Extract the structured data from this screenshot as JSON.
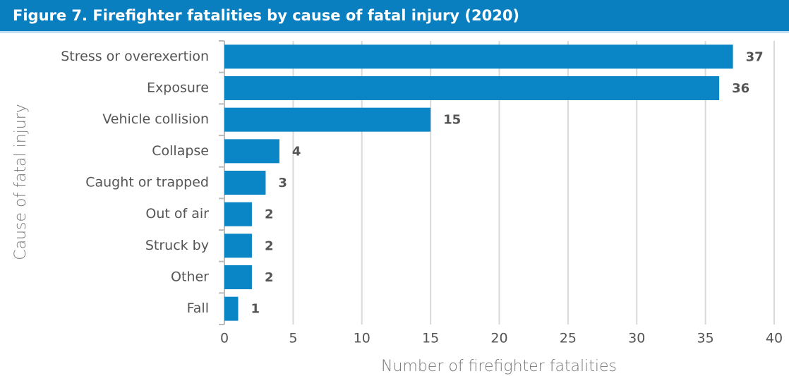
{
  "chart_data": {
    "type": "bar",
    "orientation": "horizontal",
    "title": "Figure 7. Firefighter fatalities by cause of fatal injury (2020)",
    "x_label": "Number of firefighter fatalities",
    "y_label": "Cause of fatal injury",
    "categories": [
      "Stress or overexertion",
      "Exposure",
      "Vehicle collision",
      "Collapse",
      "Caught or trapped",
      "Out of air",
      "Struck by",
      "Other",
      "Fall"
    ],
    "values": [
      37,
      36,
      15,
      4,
      3,
      2,
      2,
      2,
      1
    ],
    "color": "#0a85c6",
    "xlim": [
      0,
      40
    ],
    "xticks": [
      0,
      5,
      10,
      15,
      20,
      25,
      30,
      35,
      40
    ],
    "grid": true
  }
}
